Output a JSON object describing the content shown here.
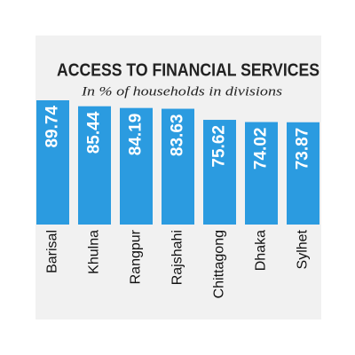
{
  "chart_data": {
    "type": "bar",
    "title": "ACCESS TO FINANCIAL SERVICES",
    "subtitle": "In % of households in divisions",
    "categories": [
      "Barisal",
      "Khulna",
      "Rangpur",
      "Rajshahi",
      "Chittagong",
      "Dhaka",
      "Sylhet"
    ],
    "values": [
      89.74,
      85.44,
      84.19,
      83.63,
      75.62,
      74.02,
      73.87
    ],
    "color": "#2b9be0"
  }
}
